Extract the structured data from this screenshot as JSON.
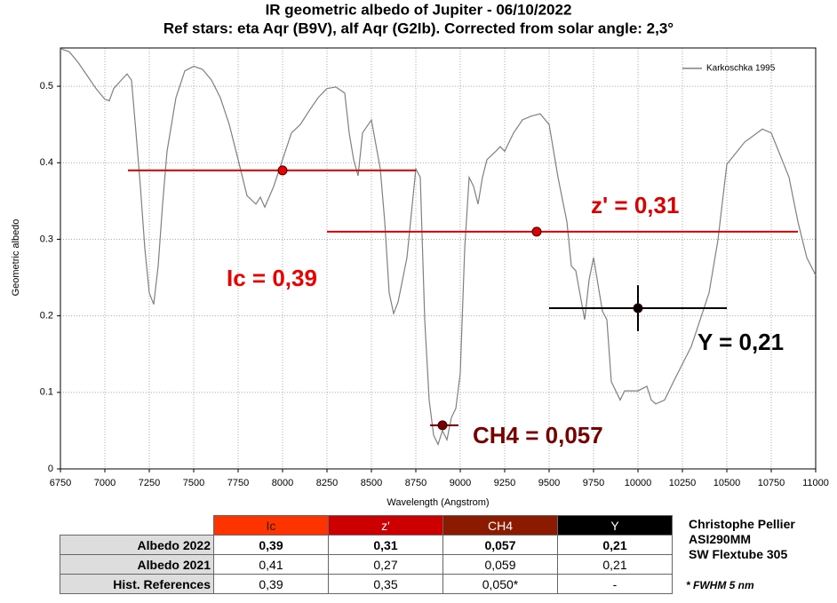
{
  "chart_data": {
    "type": "line",
    "title": "IR geometric albedo of Jupiter - 06/10/2022",
    "subtitle": "Ref stars: eta Aqr (B9V), alf Aqr (G2Ib). Corrected from solar angle: 2,3°",
    "x_label": "Wavelength (Angstrom)",
    "y_label": "Geometric albedo",
    "xlim": [
      6750,
      11000
    ],
    "ylim": [
      0,
      0.55
    ],
    "xticks": [
      6750,
      7000,
      7250,
      7500,
      7750,
      8000,
      8250,
      8500,
      8750,
      9000,
      9250,
      9500,
      9750,
      10000,
      10250,
      10500,
      10750,
      11000
    ],
    "yticks": [
      0,
      0.1,
      0.2,
      0.3,
      0.4,
      0.5
    ],
    "grid": true,
    "legend": "top-right",
    "series": [
      {
        "name": "Karkoschka 1995",
        "color": "#808080",
        "x": [
          6750,
          6800,
          6850,
          6900,
          6950,
          7000,
          7025,
          7050,
          7100,
          7125,
          7150,
          7175,
          7200,
          7225,
          7250,
          7275,
          7300,
          7325,
          7350,
          7400,
          7450,
          7500,
          7550,
          7600,
          7650,
          7700,
          7750,
          7800,
          7850,
          7875,
          7900,
          7950,
          8000,
          8050,
          8100,
          8150,
          8200,
          8250,
          8300,
          8350,
          8375,
          8400,
          8425,
          8450,
          8500,
          8550,
          8575,
          8600,
          8625,
          8650,
          8700,
          8750,
          8775,
          8800,
          8825,
          8850,
          8875,
          8900,
          8925,
          8950,
          8975,
          9000,
          9025,
          9050,
          9075,
          9100,
          9125,
          9150,
          9200,
          9225,
          9250,
          9300,
          9350,
          9400,
          9450,
          9500,
          9550,
          9600,
          9625,
          9650,
          9700,
          9725,
          9750,
          9800,
          9825,
          9850,
          9900,
          9925,
          9950,
          10000,
          10050,
          10075,
          10100,
          10150,
          10200,
          10300,
          10400,
          10450,
          10500,
          10600,
          10700,
          10750,
          10800,
          10850,
          10900,
          10950,
          11000
        ],
        "values": [
          0.549,
          0.545,
          0.531,
          0.514,
          0.497,
          0.483,
          0.481,
          0.497,
          0.51,
          0.516,
          0.508,
          0.44,
          0.369,
          0.288,
          0.23,
          0.215,
          0.265,
          0.346,
          0.415,
          0.485,
          0.52,
          0.526,
          0.522,
          0.508,
          0.485,
          0.45,
          0.404,
          0.357,
          0.346,
          0.355,
          0.342,
          0.369,
          0.404,
          0.439,
          0.45,
          0.468,
          0.485,
          0.497,
          0.499,
          0.491,
          0.439,
          0.404,
          0.383,
          0.439,
          0.456,
          0.392,
          0.323,
          0.23,
          0.203,
          0.218,
          0.276,
          0.392,
          0.381,
          0.195,
          0.09,
          0.044,
          0.032,
          0.05,
          0.038,
          0.067,
          0.079,
          0.125,
          0.288,
          0.381,
          0.369,
          0.346,
          0.381,
          0.404,
          0.415,
          0.421,
          0.415,
          0.439,
          0.456,
          0.461,
          0.464,
          0.45,
          0.381,
          0.323,
          0.265,
          0.259,
          0.195,
          0.247,
          0.276,
          0.206,
          0.195,
          0.114,
          0.09,
          0.102,
          0.102,
          0.102,
          0.108,
          0.09,
          0.085,
          0.09,
          0.114,
          0.16,
          0.23,
          0.299,
          0.398,
          0.427,
          0.444,
          0.439,
          0.41,
          0.381,
          0.323,
          0.276,
          0.253
        ]
      }
    ],
    "filters": [
      {
        "label": "Ic = 0,39",
        "color": "#ee0000",
        "x": 8000,
        "y": 0.39,
        "xmin": 7130,
        "xmax": 8750
      },
      {
        "label": "z' = 0,31",
        "color": "#dd0000",
        "x": 9430,
        "y": 0.31,
        "xmin": 8250,
        "xmax": 10900
      },
      {
        "label": "CH4 = 0,057",
        "color": "#7a0000",
        "x": 8900,
        "y": 0.057,
        "xmin": 8830,
        "xmax": 8990
      },
      {
        "label": "Y = 0,21",
        "color": "#000000",
        "x": 10000,
        "y": 0.21,
        "xmin": 9500,
        "xmax": 10500,
        "yerr": 0.03
      }
    ]
  },
  "table": {
    "columns": [
      {
        "text": "Ic",
        "color": "#ff3300"
      },
      {
        "text": "z'",
        "color": "#cc0000"
      },
      {
        "text": "CH4",
        "color": "#8b1a00"
      },
      {
        "text": "Y",
        "color": "#000000"
      }
    ],
    "rows": [
      {
        "label": "Albedo 2022",
        "cells": [
          "0,39",
          "0,31",
          "0,057",
          "0,21"
        ]
      },
      {
        "label": "Albedo 2021",
        "cells": [
          "0,41",
          "0,27",
          "0,059",
          "0,21"
        ]
      },
      {
        "label": "Hist. References",
        "cells": [
          "0,39",
          "0,35",
          "0,050*",
          "-"
        ]
      }
    ]
  },
  "credits": [
    "Christophe Pellier",
    "ASI290MM",
    "SW Flextube 305"
  ],
  "footnote": "* FWHM 5 nm"
}
